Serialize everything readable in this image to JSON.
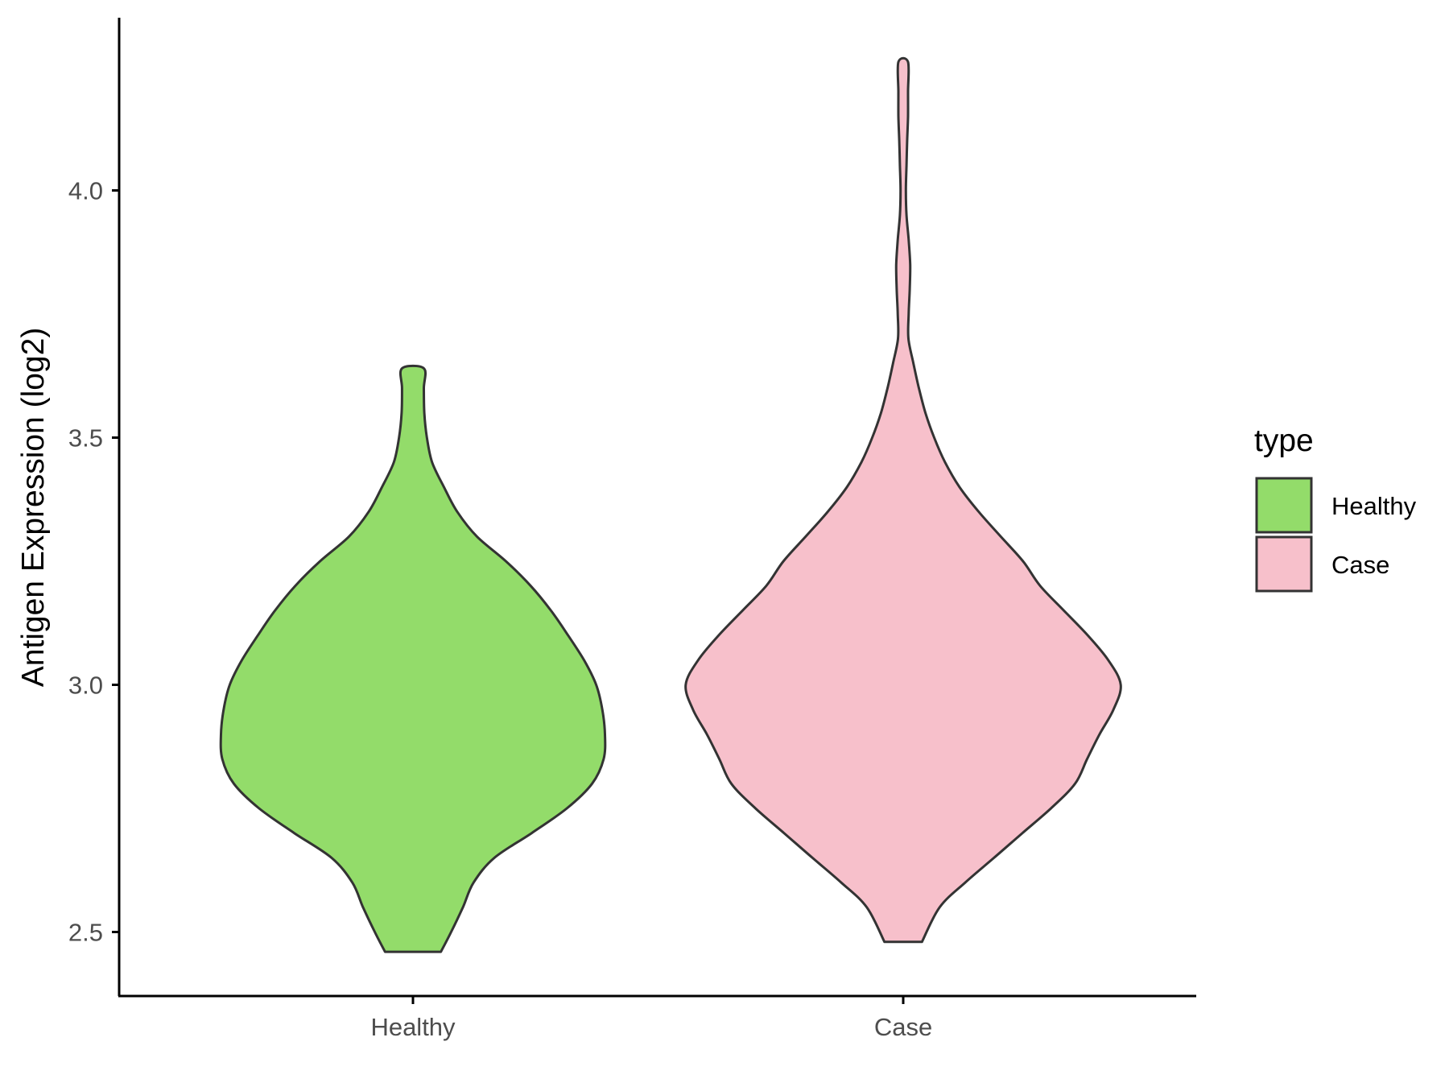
{
  "chart_data": {
    "type": "violin",
    "title": "",
    "xlabel": "",
    "ylabel": "Antigen Expression (log2)",
    "categories": [
      "Healthy",
      "Case"
    ],
    "ylim": [
      2.37,
      4.35
    ],
    "yticks": [
      2.5,
      3.0,
      3.5,
      4.0
    ],
    "ytick_labels": [
      "2.5",
      "3.0",
      "3.5",
      "4.0"
    ],
    "grid": false,
    "legend": {
      "title": "type",
      "position": "right",
      "entries": [
        "Healthy",
        "Case"
      ]
    },
    "series": [
      {
        "name": "Healthy",
        "color": "#93DC6A",
        "min": 2.46,
        "max": 3.64,
        "density_profile": [
          [
            2.46,
            0.128
          ],
          [
            2.5,
            0.175
          ],
          [
            2.55,
            0.229
          ],
          [
            2.6,
            0.278
          ],
          [
            2.65,
            0.373
          ],
          [
            2.7,
            0.544
          ],
          [
            2.75,
            0.705
          ],
          [
            2.8,
            0.821
          ],
          [
            2.85,
            0.874
          ],
          [
            2.9,
            0.88
          ],
          [
            2.95,
            0.868
          ],
          [
            3.0,
            0.84
          ],
          [
            3.05,
            0.784
          ],
          [
            3.1,
            0.711
          ],
          [
            3.15,
            0.633
          ],
          [
            3.2,
            0.54
          ],
          [
            3.25,
            0.426
          ],
          [
            3.3,
            0.293
          ],
          [
            3.35,
            0.203
          ],
          [
            3.4,
            0.142
          ],
          [
            3.45,
            0.088
          ],
          [
            3.5,
            0.064
          ],
          [
            3.55,
            0.052
          ],
          [
            3.6,
            0.05
          ],
          [
            3.64,
            0.05
          ]
        ]
      },
      {
        "name": "Case",
        "color": "#F7C0CB",
        "min": 2.48,
        "max": 4.26,
        "density_profile": [
          [
            2.48,
            0.086
          ],
          [
            2.55,
            0.167
          ],
          [
            2.6,
            0.284
          ],
          [
            2.65,
            0.416
          ],
          [
            2.7,
            0.546
          ],
          [
            2.75,
            0.677
          ],
          [
            2.8,
            0.788
          ],
          [
            2.85,
            0.843
          ],
          [
            2.9,
            0.9
          ],
          [
            2.95,
            0.964
          ],
          [
            3.0,
            0.997
          ],
          [
            3.05,
            0.94
          ],
          [
            3.1,
            0.846
          ],
          [
            3.15,
            0.737
          ],
          [
            3.2,
            0.628
          ],
          [
            3.25,
            0.549
          ],
          [
            3.3,
            0.447
          ],
          [
            3.35,
            0.346
          ],
          [
            3.4,
            0.258
          ],
          [
            3.45,
            0.192
          ],
          [
            3.5,
            0.142
          ],
          [
            3.55,
            0.102
          ],
          [
            3.6,
            0.072
          ],
          [
            3.65,
            0.047
          ],
          [
            3.7,
            0.024
          ],
          [
            3.75,
            0.025
          ],
          [
            3.8,
            0.03
          ],
          [
            3.85,
            0.032
          ],
          [
            3.9,
            0.025
          ],
          [
            3.95,
            0.015
          ],
          [
            4.0,
            0.012
          ],
          [
            4.05,
            0.015
          ],
          [
            4.1,
            0.018
          ],
          [
            4.15,
            0.022
          ],
          [
            4.2,
            0.022
          ],
          [
            4.26,
            0.022
          ]
        ]
      }
    ]
  }
}
